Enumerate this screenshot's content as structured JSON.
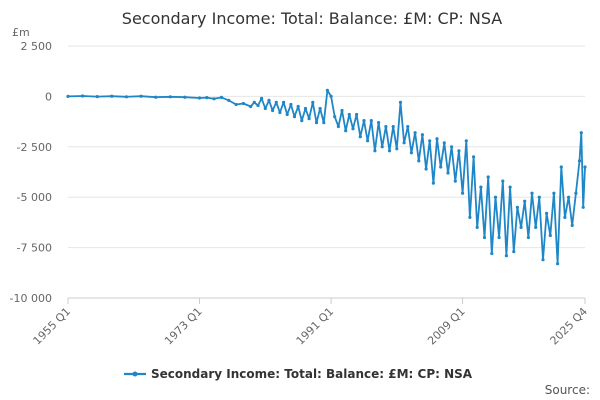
{
  "colors": {
    "series": "#1f86c7",
    "grid": "#e6e6e6",
    "axis": "#cccccc",
    "text": "#333333",
    "tick_text": "#666666"
  },
  "chart_data": {
    "type": "line",
    "title": "Secondary Income: Total: Balance: £M: CP: NSA",
    "ylabel": "£m",
    "xlabel": "",
    "source_label": "Source:",
    "ylim": [
      -10000,
      2500
    ],
    "yticks": [
      2500,
      0,
      -2500,
      -5000,
      -7500,
      -10000
    ],
    "ytick_labels": [
      "2 500",
      "0",
      "-2 500",
      "-5 000",
      "-7 500",
      "-10 000"
    ],
    "xlim": [
      1955.0,
      2025.75
    ],
    "xticks": [
      1955.0,
      1973.0,
      1991.0,
      2009.0,
      2025.75
    ],
    "xtick_labels": [
      "1955 Q1",
      "1973 Q1",
      "1991 Q1",
      "2009 Q1",
      "2025 Q4"
    ],
    "grid": true,
    "legend_position": "bottom-center",
    "series": [
      {
        "name": "Secondary Income: Total: Balance: £M: CP: NSA",
        "points": [
          [
            1955.0,
            0
          ],
          [
            1957.0,
            20
          ],
          [
            1959.0,
            -10
          ],
          [
            1961.0,
            10
          ],
          [
            1963.0,
            -20
          ],
          [
            1965.0,
            10
          ],
          [
            1967.0,
            -40
          ],
          [
            1969.0,
            -20
          ],
          [
            1971.0,
            -40
          ],
          [
            1973.0,
            -80
          ],
          [
            1974.0,
            -60
          ],
          [
            1975.0,
            -120
          ],
          [
            1976.0,
            -50
          ],
          [
            1977.0,
            -200
          ],
          [
            1978.0,
            -400
          ],
          [
            1979.0,
            -350
          ],
          [
            1980.0,
            -500
          ],
          [
            1980.5,
            -300
          ],
          [
            1981.0,
            -450
          ],
          [
            1981.5,
            -100
          ],
          [
            1982.0,
            -600
          ],
          [
            1982.5,
            -200
          ],
          [
            1983.0,
            -700
          ],
          [
            1983.5,
            -300
          ],
          [
            1984.0,
            -800
          ],
          [
            1984.5,
            -300
          ],
          [
            1985.0,
            -900
          ],
          [
            1985.5,
            -400
          ],
          [
            1986.0,
            -1000
          ],
          [
            1986.5,
            -500
          ],
          [
            1987.0,
            -1200
          ],
          [
            1987.5,
            -600
          ],
          [
            1988.0,
            -1100
          ],
          [
            1988.5,
            -300
          ],
          [
            1989.0,
            -1300
          ],
          [
            1989.5,
            -600
          ],
          [
            1990.0,
            -1300
          ],
          [
            1990.5,
            300
          ],
          [
            1991.0,
            0
          ],
          [
            1991.5,
            -1000
          ],
          [
            1992.0,
            -1500
          ],
          [
            1992.5,
            -700
          ],
          [
            1993.0,
            -1700
          ],
          [
            1993.5,
            -900
          ],
          [
            1994.0,
            -1600
          ],
          [
            1994.5,
            -900
          ],
          [
            1995.0,
            -2000
          ],
          [
            1995.5,
            -1200
          ],
          [
            1996.0,
            -2200
          ],
          [
            1996.5,
            -1200
          ],
          [
            1997.0,
            -2700
          ],
          [
            1997.5,
            -1300
          ],
          [
            1998.0,
            -2500
          ],
          [
            1998.5,
            -1500
          ],
          [
            1999.0,
            -2700
          ],
          [
            1999.5,
            -1500
          ],
          [
            2000.0,
            -2600
          ],
          [
            2000.5,
            -300
          ],
          [
            2001.0,
            -2300
          ],
          [
            2001.5,
            -1500
          ],
          [
            2002.0,
            -2800
          ],
          [
            2002.5,
            -1800
          ],
          [
            2003.0,
            -3200
          ],
          [
            2003.5,
            -1900
          ],
          [
            2004.0,
            -3600
          ],
          [
            2004.5,
            -2200
          ],
          [
            2005.0,
            -4300
          ],
          [
            2005.5,
            -2100
          ],
          [
            2006.0,
            -3500
          ],
          [
            2006.5,
            -2300
          ],
          [
            2007.0,
            -3800
          ],
          [
            2007.5,
            -2500
          ],
          [
            2008.0,
            -4200
          ],
          [
            2008.5,
            -2700
          ],
          [
            2009.0,
            -4800
          ],
          [
            2009.5,
            -2200
          ],
          [
            2010.0,
            -6000
          ],
          [
            2010.5,
            -3000
          ],
          [
            2011.0,
            -6500
          ],
          [
            2011.5,
            -4500
          ],
          [
            2012.0,
            -7000
          ],
          [
            2012.5,
            -4000
          ],
          [
            2013.0,
            -7800
          ],
          [
            2013.5,
            -5000
          ],
          [
            2014.0,
            -7000
          ],
          [
            2014.5,
            -4200
          ],
          [
            2015.0,
            -7900
          ],
          [
            2015.5,
            -4500
          ],
          [
            2016.0,
            -7700
          ],
          [
            2016.5,
            -5500
          ],
          [
            2017.0,
            -6500
          ],
          [
            2017.5,
            -5200
          ],
          [
            2018.0,
            -7000
          ],
          [
            2018.5,
            -4800
          ],
          [
            2019.0,
            -6500
          ],
          [
            2019.5,
            -5000
          ],
          [
            2020.0,
            -8100
          ],
          [
            2020.5,
            -5800
          ],
          [
            2021.0,
            -6900
          ],
          [
            2021.5,
            -4800
          ],
          [
            2022.0,
            -8300
          ],
          [
            2022.5,
            -3500
          ],
          [
            2023.0,
            -6000
          ],
          [
            2023.5,
            -5000
          ],
          [
            2024.0,
            -6400
          ],
          [
            2024.5,
            -4800
          ],
          [
            2025.0,
            -3200
          ],
          [
            2025.25,
            -1800
          ],
          [
            2025.5,
            -5500
          ],
          [
            2025.75,
            -3500
          ]
        ]
      }
    ]
  }
}
